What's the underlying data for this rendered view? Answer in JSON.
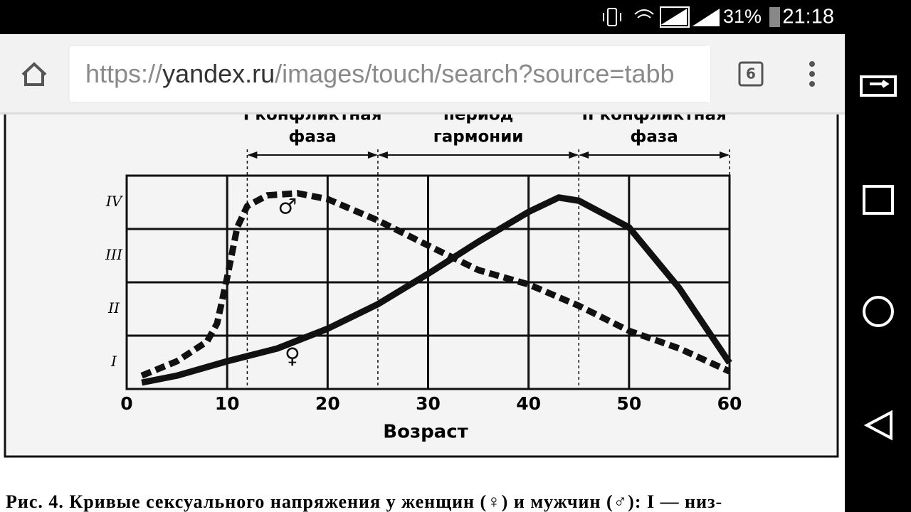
{
  "status_bar": {
    "battery": "31%",
    "time": "21:18"
  },
  "browser": {
    "url": {
      "scheme": "https://",
      "host": "yandex.ru",
      "path": "/images/touch/search?source=tabb"
    },
    "tabs": "6"
  },
  "chart_data": {
    "type": "line",
    "x_label": "Возраст",
    "phases": [
      {
        "lines": [
          "I конфликтная",
          "фаза"
        ],
        "from": 12,
        "to": 25
      },
      {
        "lines": [
          "период",
          "гармонии"
        ],
        "from": 25,
        "to": 45
      },
      {
        "lines": [
          "II конфликтная",
          "фаза"
        ],
        "from": 45,
        "to": 60
      }
    ],
    "xlim": [
      0,
      60
    ],
    "xticks": [
      0,
      10,
      20,
      30,
      40,
      50,
      60
    ],
    "ylim": [
      0,
      4
    ],
    "yticks": [
      {
        "value": 0.5,
        "label": "I"
      },
      {
        "value": 1.5,
        "label": "II"
      },
      {
        "value": 2.5,
        "label": "III"
      },
      {
        "value": 3.5,
        "label": "IV"
      }
    ],
    "ygrid": [
      1,
      2,
      3
    ],
    "grid": true,
    "series": [
      {
        "name": "♂",
        "color": "#111111",
        "dashed": true,
        "x": [
          1.5,
          5,
          8,
          9,
          10,
          11,
          12,
          14,
          17,
          20,
          25,
          30,
          35,
          40,
          45,
          50,
          55,
          60
        ],
        "values": [
          0.25,
          0.52,
          0.89,
          1.23,
          2.09,
          3.03,
          3.43,
          3.63,
          3.67,
          3.56,
          3.16,
          2.69,
          2.23,
          1.96,
          1.56,
          1.09,
          0.76,
          0.33
        ],
        "label_at": [
          16,
          3.4
        ]
      },
      {
        "name": "♀",
        "color": "#111111",
        "dashed": false,
        "x": [
          1.5,
          5,
          10,
          15,
          20,
          25,
          30,
          35,
          40,
          43,
          45,
          50,
          55,
          60
        ],
        "values": [
          0.12,
          0.25,
          0.52,
          0.76,
          1.13,
          1.59,
          2.16,
          2.76,
          3.32,
          3.59,
          3.53,
          3.03,
          1.89,
          0.49
        ],
        "label_at": [
          16.5,
          0.6
        ]
      }
    ]
  },
  "caption": "Рис. 4. Кривые сексуального напряжения у женщин (♀) и мужчин (♂): I — низ-"
}
